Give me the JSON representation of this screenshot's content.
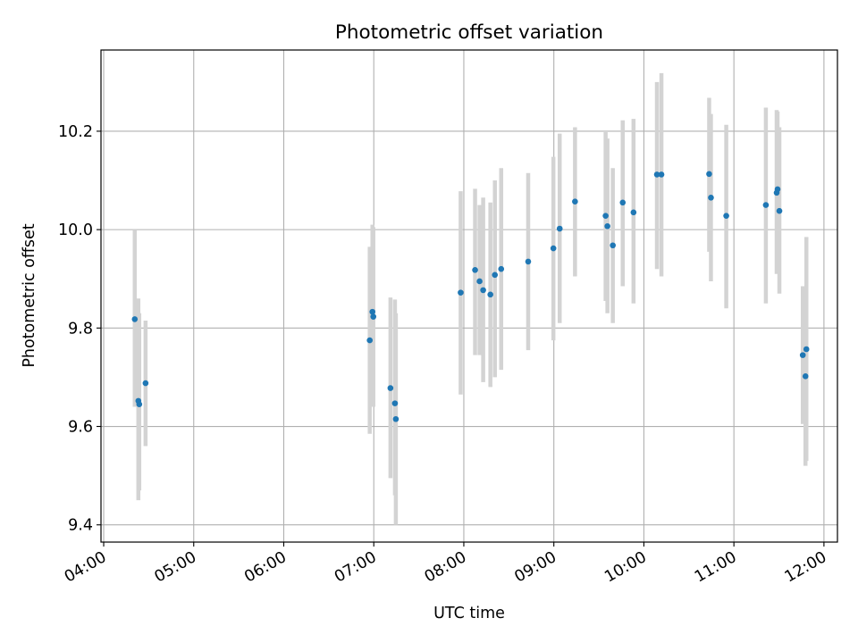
{
  "chart_data": {
    "type": "scatter",
    "title": "Photometric offset variation",
    "xlabel": "UTC time",
    "ylabel": "Photometric offset",
    "x_unit": "hours UTC",
    "xlim": [
      3.97,
      12.15
    ],
    "ylim": [
      9.365,
      10.365
    ],
    "x_ticks": [
      {
        "value": 4,
        "label": "04:00"
      },
      {
        "value": 5,
        "label": "05:00"
      },
      {
        "value": 6,
        "label": "06:00"
      },
      {
        "value": 7,
        "label": "07:00"
      },
      {
        "value": 8,
        "label": "08:00"
      },
      {
        "value": 9,
        "label": "09:00"
      },
      {
        "value": 10,
        "label": "10:00"
      },
      {
        "value": 11,
        "label": "11:00"
      },
      {
        "value": 12,
        "label": "12:00"
      }
    ],
    "y_ticks": [
      {
        "value": 9.4,
        "label": "9.4"
      },
      {
        "value": 9.6,
        "label": "9.6"
      },
      {
        "value": 9.8,
        "label": "9.8"
      },
      {
        "value": 10.0,
        "label": "10.0"
      },
      {
        "value": 10.2,
        "label": "10.2"
      }
    ],
    "grid": true,
    "colors": {
      "point": "#1f77b4",
      "errorbar": "#d3d3d3",
      "grid": "#b0b0b0",
      "frame": "#000000"
    },
    "points": [
      {
        "x": 4.345,
        "y": 9.818,
        "ylo": 9.64,
        "yhi": 10.0
      },
      {
        "x": 4.385,
        "y": 9.652,
        "ylo": 9.45,
        "yhi": 9.86
      },
      {
        "x": 4.395,
        "y": 9.645,
        "ylo": 9.47,
        "yhi": 9.83
      },
      {
        "x": 4.465,
        "y": 9.688,
        "ylo": 9.56,
        "yhi": 9.815
      },
      {
        "x": 6.955,
        "y": 9.775,
        "ylo": 9.585,
        "yhi": 9.965
      },
      {
        "x": 6.985,
        "y": 9.833,
        "ylo": 9.65,
        "yhi": 10.01
      },
      {
        "x": 6.995,
        "y": 9.823,
        "ylo": 9.64,
        "yhi": 10.005
      },
      {
        "x": 7.185,
        "y": 9.678,
        "ylo": 9.495,
        "yhi": 9.862
      },
      {
        "x": 7.235,
        "y": 9.647,
        "ylo": 9.46,
        "yhi": 9.858
      },
      {
        "x": 7.245,
        "y": 9.615,
        "ylo": 9.4,
        "yhi": 9.83
      },
      {
        "x": 7.965,
        "y": 9.872,
        "ylo": 9.665,
        "yhi": 10.078
      },
      {
        "x": 8.125,
        "y": 9.918,
        "ylo": 9.745,
        "yhi": 10.083
      },
      {
        "x": 8.175,
        "y": 9.895,
        "ylo": 9.745,
        "yhi": 10.05
      },
      {
        "x": 8.215,
        "y": 9.877,
        "ylo": 9.69,
        "yhi": 10.065
      },
      {
        "x": 8.295,
        "y": 9.868,
        "ylo": 9.68,
        "yhi": 10.055
      },
      {
        "x": 8.345,
        "y": 9.908,
        "ylo": 9.7,
        "yhi": 10.1
      },
      {
        "x": 8.415,
        "y": 9.92,
        "ylo": 9.715,
        "yhi": 10.125
      },
      {
        "x": 8.715,
        "y": 9.935,
        "ylo": 9.755,
        "yhi": 10.115
      },
      {
        "x": 8.995,
        "y": 9.962,
        "ylo": 9.775,
        "yhi": 10.148
      },
      {
        "x": 9.065,
        "y": 10.002,
        "ylo": 9.81,
        "yhi": 10.195
      },
      {
        "x": 9.235,
        "y": 10.057,
        "ylo": 9.905,
        "yhi": 10.208
      },
      {
        "x": 9.575,
        "y": 10.028,
        "ylo": 9.855,
        "yhi": 10.198
      },
      {
        "x": 9.595,
        "y": 10.007,
        "ylo": 9.83,
        "yhi": 10.185
      },
      {
        "x": 9.655,
        "y": 9.968,
        "ylo": 9.81,
        "yhi": 10.125
      },
      {
        "x": 9.765,
        "y": 10.055,
        "ylo": 9.885,
        "yhi": 10.222
      },
      {
        "x": 9.885,
        "y": 10.035,
        "ylo": 9.85,
        "yhi": 10.225
      },
      {
        "x": 10.145,
        "y": 10.112,
        "ylo": 9.92,
        "yhi": 10.3
      },
      {
        "x": 10.195,
        "y": 10.112,
        "ylo": 9.905,
        "yhi": 10.318
      },
      {
        "x": 10.725,
        "y": 10.113,
        "ylo": 9.955,
        "yhi": 10.268
      },
      {
        "x": 10.745,
        "y": 10.065,
        "ylo": 9.895,
        "yhi": 10.235
      },
      {
        "x": 10.915,
        "y": 10.028,
        "ylo": 9.84,
        "yhi": 10.213
      },
      {
        "x": 11.355,
        "y": 10.05,
        "ylo": 9.85,
        "yhi": 10.248
      },
      {
        "x": 11.475,
        "y": 10.075,
        "ylo": 9.91,
        "yhi": 10.243
      },
      {
        "x": 11.485,
        "y": 10.082,
        "ylo": 9.92,
        "yhi": 10.24
      },
      {
        "x": 11.505,
        "y": 10.038,
        "ylo": 9.87,
        "yhi": 10.208
      },
      {
        "x": 11.765,
        "y": 9.745,
        "ylo": 9.605,
        "yhi": 9.885
      },
      {
        "x": 11.795,
        "y": 9.702,
        "ylo": 9.52,
        "yhi": 9.885
      },
      {
        "x": 11.805,
        "y": 9.757,
        "ylo": 9.53,
        "yhi": 9.985
      }
    ]
  }
}
